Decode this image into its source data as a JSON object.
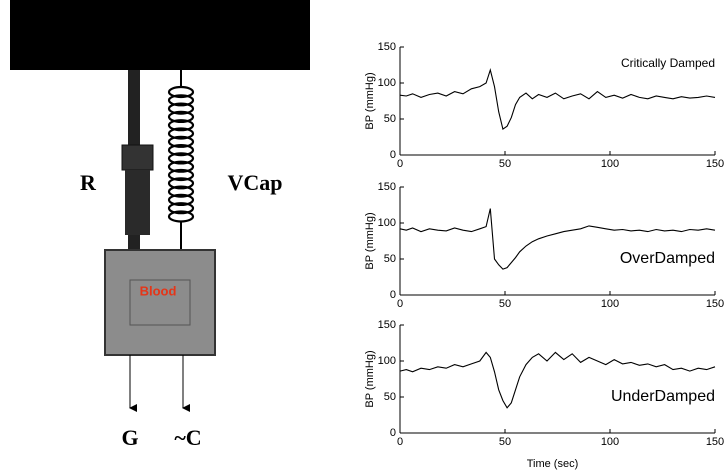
{
  "diagram": {
    "labels": {
      "r": "R",
      "vcap": "VCap",
      "blood": "Blood",
      "g": "G",
      "c": "~C"
    }
  },
  "chart_data": [
    {
      "type": "line",
      "ylabel": "BP (mmHg)",
      "annotation": "Critically Damped",
      "color": "#000000",
      "x": [
        0,
        3,
        6,
        10,
        14,
        18,
        22,
        26,
        30,
        34,
        38,
        41,
        43,
        45,
        47,
        49,
        51,
        53,
        55,
        57,
        60,
        63,
        66,
        70,
        74,
        78,
        82,
        86,
        90,
        94,
        98,
        102,
        106,
        110,
        114,
        118,
        122,
        126,
        130,
        134,
        138,
        142,
        146,
        150
      ],
      "values": [
        83,
        82,
        85,
        80,
        84,
        86,
        82,
        88,
        85,
        92,
        95,
        100,
        118,
        95,
        60,
        36,
        40,
        52,
        70,
        80,
        86,
        78,
        84,
        80,
        86,
        78,
        82,
        85,
        78,
        88,
        80,
        83,
        79,
        84,
        80,
        78,
        82,
        80,
        78,
        81,
        79,
        80,
        82,
        80
      ],
      "xlim": [
        0,
        150
      ],
      "ylim": [
        0,
        150
      ],
      "xticks": [
        0,
        50,
        100,
        150
      ],
      "yticks": [
        0,
        50,
        100,
        150
      ]
    },
    {
      "type": "line",
      "ylabel": "BP (mmHg)",
      "annotation": "OverDamped",
      "color": "#000000",
      "x": [
        0,
        3,
        6,
        10,
        14,
        18,
        22,
        26,
        30,
        34,
        38,
        41,
        43,
        45,
        47,
        49,
        51,
        53,
        55,
        57,
        60,
        63,
        66,
        70,
        74,
        78,
        82,
        86,
        90,
        94,
        98,
        102,
        106,
        110,
        114,
        118,
        122,
        126,
        130,
        134,
        138,
        142,
        146,
        150
      ],
      "values": [
        92,
        90,
        93,
        88,
        92,
        90,
        89,
        93,
        90,
        88,
        92,
        95,
        120,
        50,
        42,
        36,
        38,
        45,
        52,
        60,
        68,
        74,
        78,
        82,
        85,
        88,
        90,
        92,
        96,
        94,
        92,
        90,
        91,
        89,
        90,
        88,
        91,
        89,
        90,
        88,
        91,
        90,
        92,
        90
      ],
      "xlim": [
        0,
        150
      ],
      "ylim": [
        0,
        150
      ],
      "xticks": [
        0,
        50,
        100,
        150
      ],
      "yticks": [
        0,
        50,
        100,
        150
      ]
    },
    {
      "type": "line",
      "ylabel": "BP (mmHg)",
      "xlabel": "Time (sec)",
      "annotation": "UnderDamped",
      "color": "#000000",
      "x": [
        0,
        3,
        6,
        10,
        14,
        18,
        22,
        26,
        30,
        34,
        38,
        41,
        43,
        45,
        47,
        49,
        51,
        53,
        55,
        57,
        60,
        63,
        66,
        70,
        74,
        78,
        82,
        86,
        90,
        94,
        98,
        102,
        106,
        110,
        114,
        118,
        122,
        126,
        130,
        134,
        138,
        142,
        146,
        150
      ],
      "values": [
        86,
        88,
        85,
        90,
        88,
        92,
        90,
        95,
        92,
        96,
        100,
        112,
        105,
        85,
        60,
        45,
        35,
        42,
        60,
        78,
        95,
        105,
        110,
        100,
        112,
        102,
        110,
        98,
        105,
        100,
        95,
        102,
        96,
        98,
        94,
        96,
        92,
        95,
        88,
        90,
        86,
        90,
        88,
        92
      ],
      "xlim": [
        0,
        150
      ],
      "ylim": [
        0,
        150
      ],
      "xticks": [
        0,
        50,
        100,
        150
      ],
      "yticks": [
        0,
        50,
        100,
        150
      ]
    }
  ]
}
